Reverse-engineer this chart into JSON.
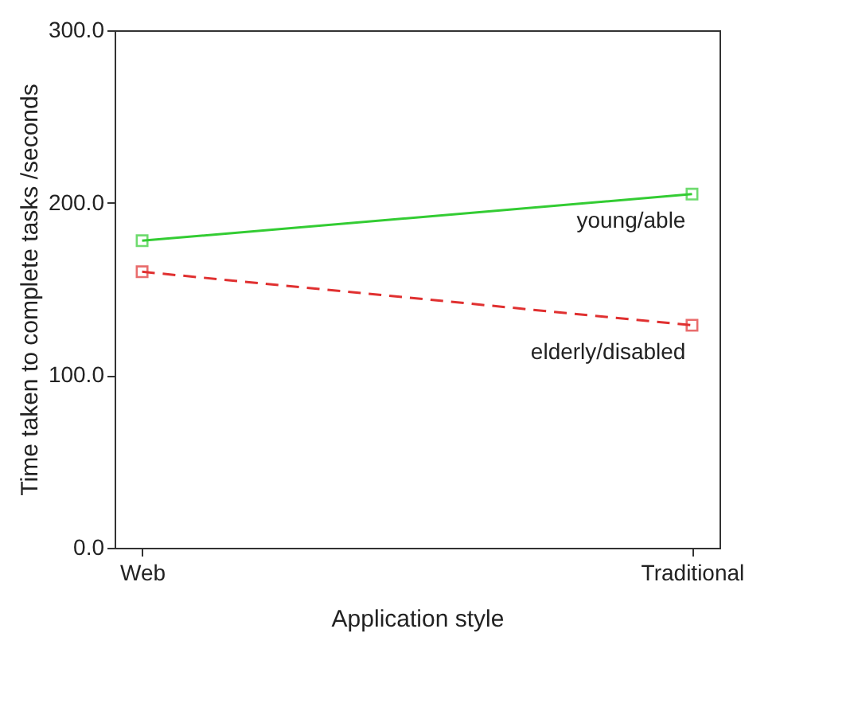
{
  "chart_data": {
    "type": "line",
    "xlabel": "Application style",
    "ylabel": "Time taken to complete tasks /seconds",
    "categories": [
      "Web",
      "Traditional"
    ],
    "series": [
      {
        "name": "young/able",
        "color": "#33cc33",
        "values": [
          178,
          205
        ],
        "line_style": "solid"
      },
      {
        "name": "elderly/disabled",
        "color": "#e03030",
        "values": [
          160,
          129
        ],
        "line_style": "dashed"
      }
    ],
    "ylim": [
      0,
      300
    ],
    "yticks": [
      {
        "value": 0,
        "label": "0.0"
      },
      {
        "value": 100,
        "label": "100.0"
      },
      {
        "value": 200,
        "label": "200.0"
      },
      {
        "value": 300,
        "label": "300.0"
      }
    ],
    "marker": "square",
    "grid": false
  }
}
